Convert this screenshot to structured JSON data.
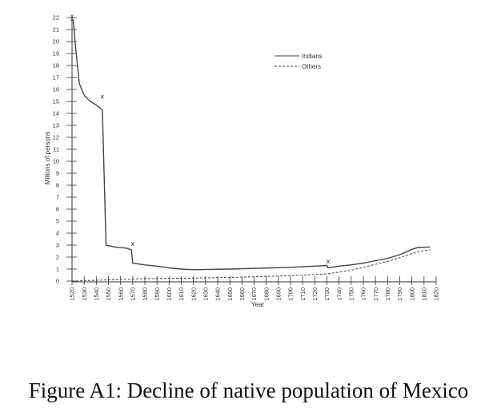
{
  "caption": "Figure A1: Decline of native population of Mexico",
  "chart_data": {
    "type": "line",
    "title": "",
    "xlabel": "Year",
    "ylabel": "Millions of persons",
    "xlim": [
      1520,
      1820
    ],
    "ylim": [
      0,
      22
    ],
    "x_ticks": [
      1520,
      1530,
      1540,
      1550,
      1560,
      1570,
      1580,
      1590,
      1600,
      1610,
      1620,
      1630,
      1640,
      1650,
      1660,
      1670,
      1680,
      1690,
      1700,
      1710,
      1720,
      1730,
      1740,
      1750,
      1760,
      1770,
      1780,
      1790,
      1800,
      1810,
      1820
    ],
    "y_ticks": [
      0,
      1,
      2,
      3,
      4,
      5,
      6,
      7,
      8,
      9,
      10,
      11,
      12,
      13,
      14,
      15,
      16,
      17,
      18,
      19,
      20,
      21,
      22
    ],
    "grid": false,
    "legend_position": "top-right",
    "series": [
      {
        "name": "Indians",
        "style": "solid",
        "points": [
          [
            1519,
            21.8
          ],
          [
            1521,
            21.8
          ],
          [
            1523,
            19.5
          ],
          [
            1526,
            16.5
          ],
          [
            1530,
            15.5
          ],
          [
            1535,
            15.0
          ],
          [
            1540,
            14.7
          ],
          [
            1545,
            14.3
          ],
          [
            1548,
            3.0
          ],
          [
            1555,
            2.85
          ],
          [
            1565,
            2.75
          ],
          [
            1569,
            2.6
          ],
          [
            1570,
            1.5
          ],
          [
            1580,
            1.35
          ],
          [
            1590,
            1.25
          ],
          [
            1600,
            1.1
          ],
          [
            1610,
            1.0
          ],
          [
            1620,
            0.95
          ],
          [
            1650,
            1.0
          ],
          [
            1700,
            1.15
          ],
          [
            1730,
            1.3
          ],
          [
            1731,
            1.1
          ],
          [
            1740,
            1.25
          ],
          [
            1750,
            1.35
          ],
          [
            1760,
            1.5
          ],
          [
            1770,
            1.7
          ],
          [
            1780,
            1.9
          ],
          [
            1790,
            2.2
          ],
          [
            1800,
            2.65
          ],
          [
            1805,
            2.8
          ],
          [
            1815,
            2.85
          ]
        ]
      },
      {
        "name": "Others",
        "style": "dashed",
        "points": [
          [
            1520,
            0.0
          ],
          [
            1550,
            0.1
          ],
          [
            1580,
            0.2
          ],
          [
            1620,
            0.25
          ],
          [
            1650,
            0.3
          ],
          [
            1700,
            0.45
          ],
          [
            1730,
            0.6
          ],
          [
            1750,
            0.9
          ],
          [
            1760,
            1.15
          ],
          [
            1770,
            1.4
          ],
          [
            1780,
            1.65
          ],
          [
            1790,
            1.95
          ],
          [
            1800,
            2.3
          ],
          [
            1810,
            2.55
          ],
          [
            1815,
            2.6
          ]
        ]
      }
    ],
    "markers": [
      {
        "x": 1520,
        "y": 22.0,
        "symbol": "x"
      },
      {
        "x": 1545,
        "y": 15.3,
        "symbol": "x"
      },
      {
        "x": 1570,
        "y": 3.0,
        "symbol": "x"
      },
      {
        "x": 1731,
        "y": 1.55,
        "symbol": "x"
      }
    ]
  }
}
